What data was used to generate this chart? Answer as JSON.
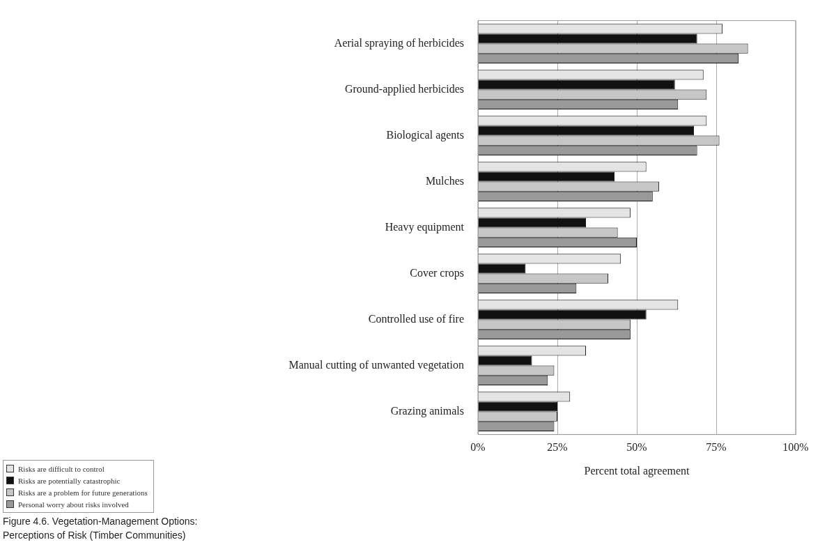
{
  "chart_data": {
    "type": "bar",
    "orientation": "horizontal",
    "title": "Figure 4.6. Vegetation-Management Options: Perceptions of Risk (Timber Communities)",
    "xlabel": "Percent total agreement",
    "categories": [
      "Aerial spraying of herbicides",
      "Ground-applied herbicides",
      "Biological agents",
      "Mulches",
      "Heavy equipment",
      "Cover crops",
      "Controlled use of fire",
      "Manual cutting of unwanted vegetation",
      "Grazing animals"
    ],
    "series": [
      {
        "name": "Risks are difficult to control",
        "color": "#e4e4e4",
        "values": [
          77,
          71,
          72,
          53,
          48,
          45,
          63,
          34,
          29
        ]
      },
      {
        "name": "Risks are potentially catastrophic",
        "color": "#111111",
        "values": [
          69,
          62,
          68,
          43,
          34,
          15,
          53,
          17,
          25
        ]
      },
      {
        "name": "Risks are a problem for future generations",
        "color": "#c6c6c6",
        "values": [
          85,
          72,
          76,
          57,
          44,
          41,
          48,
          24,
          25
        ]
      },
      {
        "name": "Personal worry about risks involved",
        "color": "#999999",
        "values": [
          82,
          63,
          69,
          55,
          50,
          31,
          48,
          22,
          24
        ]
      }
    ],
    "xlim": [
      0,
      100
    ],
    "xticks": [
      {
        "value": 0,
        "label": "0%"
      },
      {
        "value": 25,
        "label": "25%"
      },
      {
        "value": 50,
        "label": "50%"
      },
      {
        "value": 75,
        "label": "75%"
      },
      {
        "value": 100,
        "label": "100%"
      }
    ],
    "grid": "x",
    "legend": "bottom left"
  }
}
